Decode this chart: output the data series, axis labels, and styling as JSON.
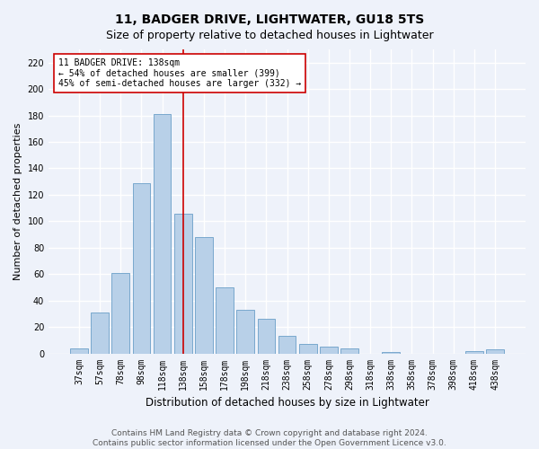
{
  "title": "11, BADGER DRIVE, LIGHTWATER, GU18 5TS",
  "subtitle": "Size of property relative to detached houses in Lightwater",
  "xlabel": "Distribution of detached houses by size in Lightwater",
  "ylabel": "Number of detached properties",
  "bar_labels": [
    "37sqm",
    "57sqm",
    "78sqm",
    "98sqm",
    "118sqm",
    "138sqm",
    "158sqm",
    "178sqm",
    "198sqm",
    "218sqm",
    "238sqm",
    "258sqm",
    "278sqm",
    "298sqm",
    "318sqm",
    "338sqm",
    "358sqm",
    "378sqm",
    "398sqm",
    "418sqm",
    "438sqm"
  ],
  "bar_values": [
    4,
    31,
    61,
    129,
    181,
    106,
    88,
    50,
    33,
    26,
    13,
    7,
    5,
    4,
    0,
    1,
    0,
    0,
    0,
    2,
    3
  ],
  "bar_color": "#b8d0e8",
  "bar_edge_color": "#6a9fc8",
  "vline_color": "#cc0000",
  "annotation_text": "11 BADGER DRIVE: 138sqm\n← 54% of detached houses are smaller (399)\n45% of semi-detached houses are larger (332) →",
  "annotation_box_color": "#ffffff",
  "annotation_box_edge": "#cc0000",
  "ylim": [
    0,
    230
  ],
  "yticks": [
    0,
    20,
    40,
    60,
    80,
    100,
    120,
    140,
    160,
    180,
    200,
    220
  ],
  "footer1": "Contains HM Land Registry data © Crown copyright and database right 2024.",
  "footer2": "Contains public sector information licensed under the Open Government Licence v3.0.",
  "background_color": "#eef2fa",
  "grid_color": "#ffffff",
  "title_fontsize": 10,
  "subtitle_fontsize": 9,
  "ylabel_fontsize": 8,
  "xlabel_fontsize": 8.5,
  "tick_fontsize": 7,
  "ann_fontsize": 7,
  "footer_fontsize": 6.5
}
